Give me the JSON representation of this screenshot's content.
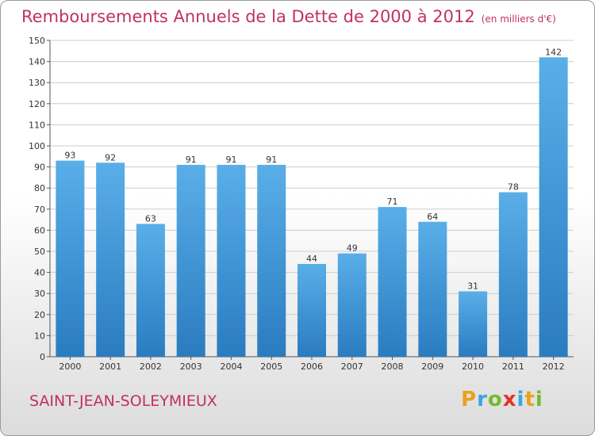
{
  "title": "Remboursements Annuels de la Dette de 2000 à 2012",
  "unit": "(en milliers d'€)",
  "commune": "SAINT-JEAN-SOLEYMIEUX",
  "logo": {
    "letters": [
      "P",
      "r",
      "o",
      "x",
      "i",
      "t",
      "i"
    ]
  },
  "colors": {
    "title": "#c0306a",
    "bar_light": "#5aaee8",
    "bar_dark": "#2a7cc0",
    "grid": "#cccccc"
  },
  "chart_data": {
    "type": "bar",
    "title": "Remboursements Annuels de la Dette de 2000 à 2012",
    "categories": [
      "2000",
      "2001",
      "2002",
      "2003",
      "2004",
      "2005",
      "2006",
      "2007",
      "2008",
      "2009",
      "2010",
      "2011",
      "2012"
    ],
    "values": [
      93,
      92,
      63,
      91,
      91,
      91,
      44,
      49,
      71,
      64,
      31,
      78,
      142
    ],
    "ylim": [
      0,
      150
    ],
    "yticks": [
      0,
      10,
      20,
      30,
      40,
      50,
      60,
      70,
      80,
      90,
      100,
      110,
      120,
      130,
      140,
      150
    ],
    "grid": true,
    "legend": "none"
  }
}
